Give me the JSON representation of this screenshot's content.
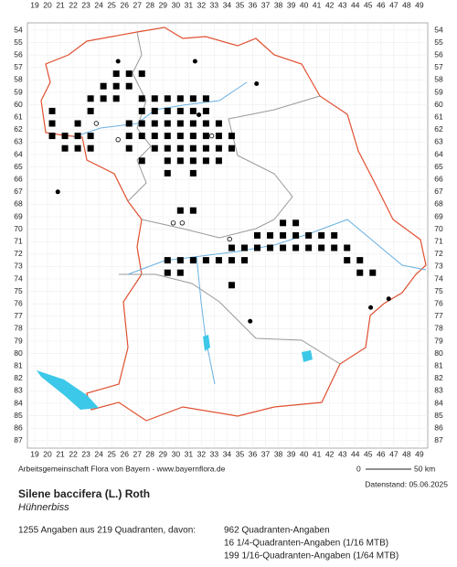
{
  "map": {
    "x_labels": [
      19,
      20,
      21,
      22,
      23,
      24,
      25,
      26,
      27,
      28,
      29,
      30,
      31,
      32,
      33,
      34,
      35,
      36,
      37,
      38,
      39,
      40,
      41,
      42,
      43,
      44,
      45,
      46,
      47,
      48,
      49
    ],
    "y_labels": [
      54,
      55,
      56,
      57,
      58,
      59,
      60,
      61,
      62,
      63,
      64,
      65,
      66,
      67,
      68,
      69,
      70,
      71,
      72,
      73,
      74,
      75,
      76,
      77,
      78,
      79,
      80,
      81,
      82,
      83,
      84,
      85,
      86,
      87
    ]
  },
  "credit": "Arbeitsgemeinschaft Flora von Bayern - www.bayernflora.de",
  "scale": {
    "start": "0",
    "end": "50 km"
  },
  "date": "Datenstand: 05.06.2025",
  "title": "Silene baccifera (L.) Roth",
  "subtitle": "Hühnerbiss",
  "stats": {
    "summary": "1255 Angaben aus 219 Quadranten, davon:",
    "lines": [
      "962 Quadranten-Angaben",
      "16 1/4-Quadranten-Angaben (1/16 MTB)",
      "199 1/16-Quadranten-Angaben (1/64 MTB)"
    ]
  }
}
